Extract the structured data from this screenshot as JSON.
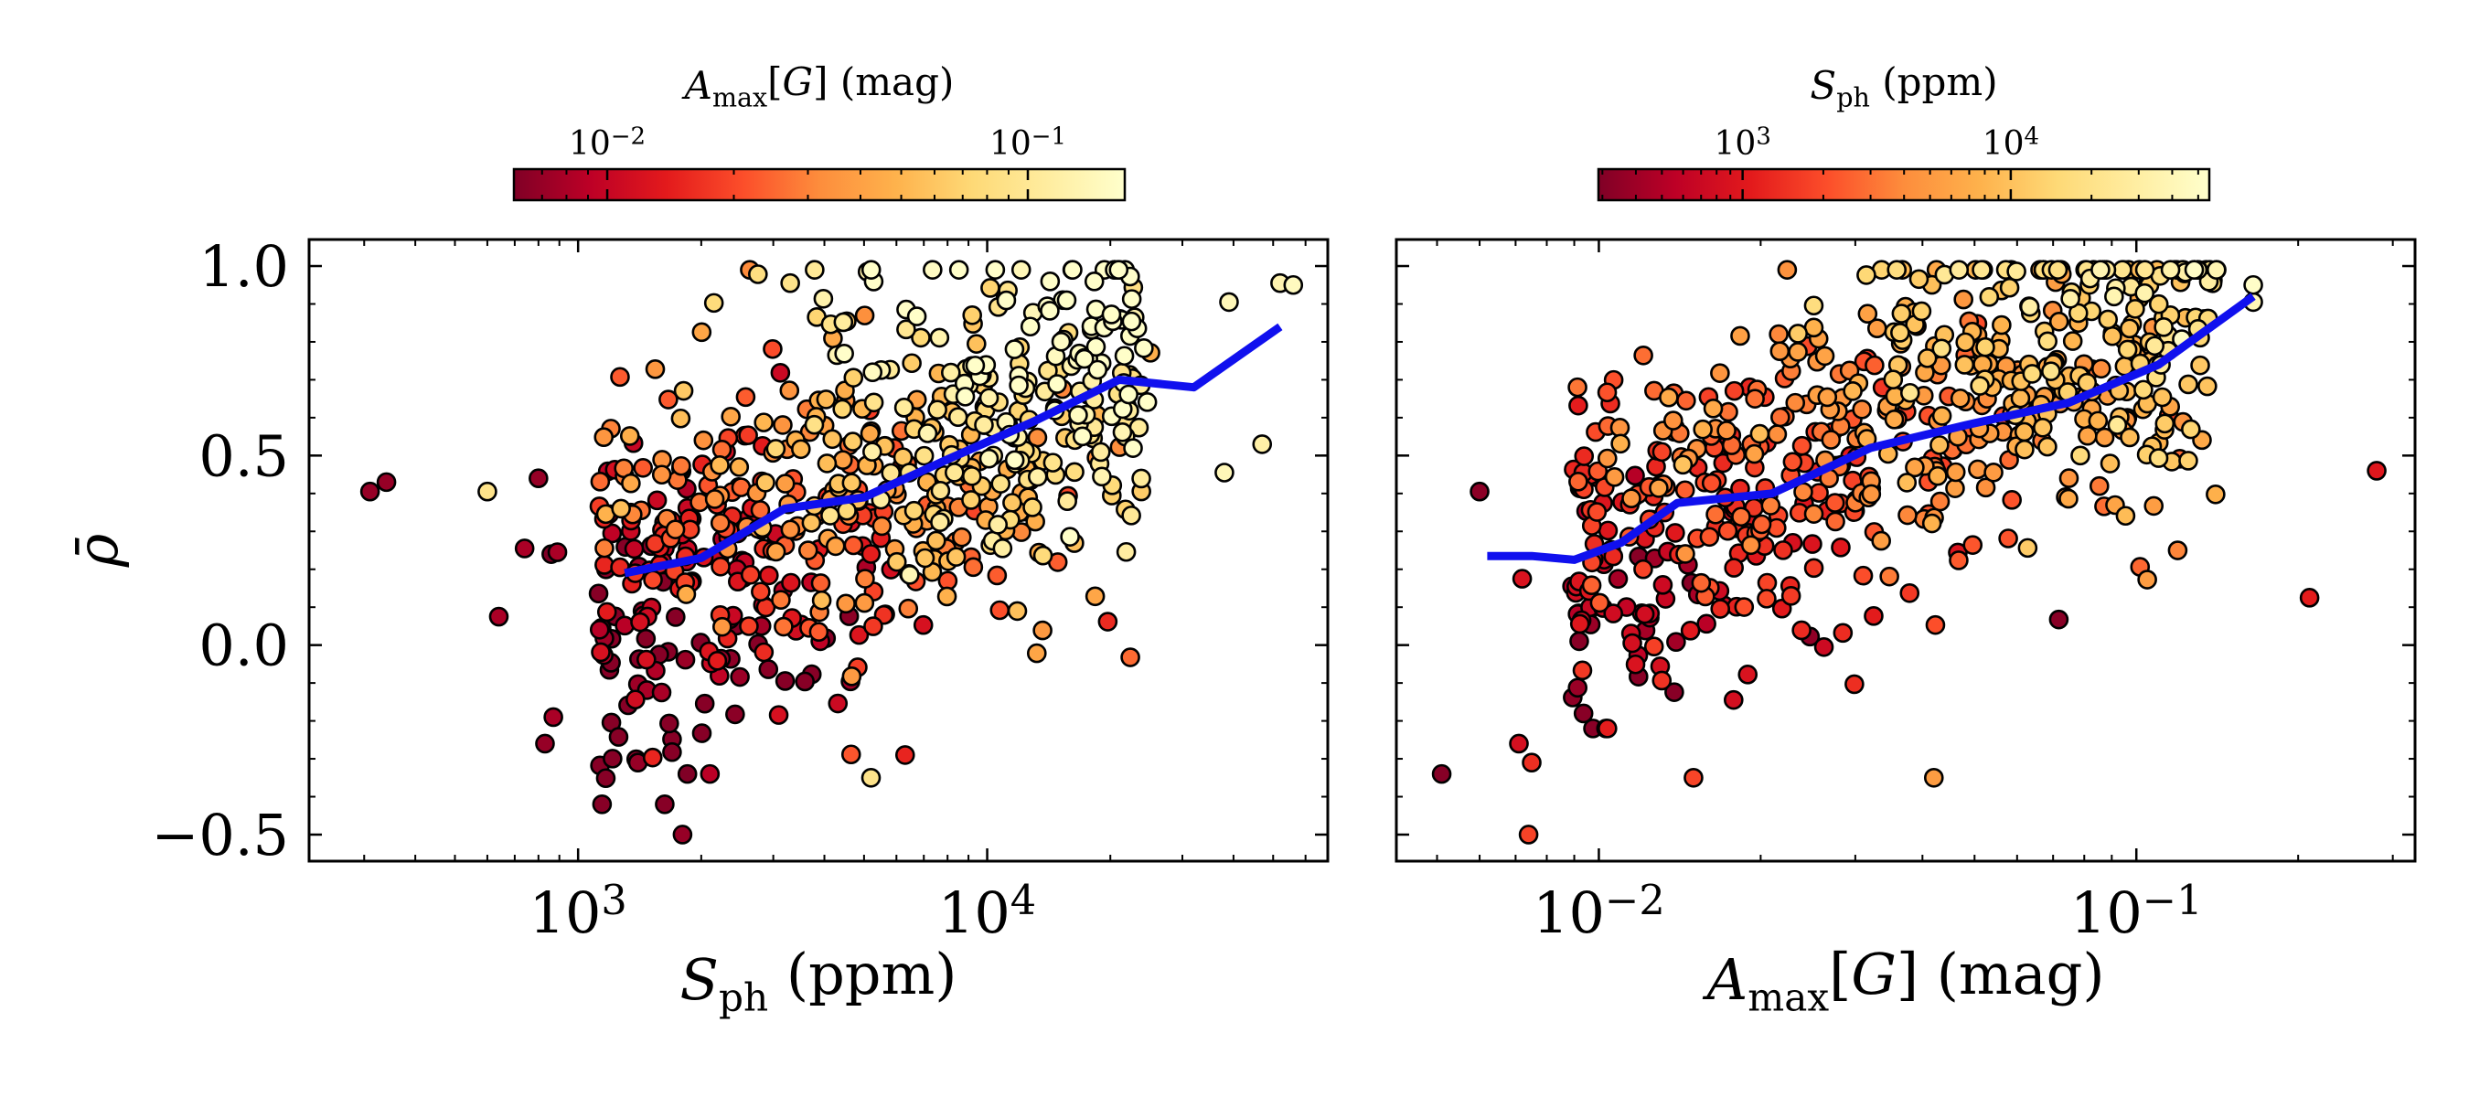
{
  "chart_data": [
    {
      "type": "scatter",
      "xlabel": "S_ph (ppm)",
      "ylabel": "ρ̄",
      "xscale": "log",
      "xlim": [
        220,
        68000
      ],
      "ylim": [
        -0.57,
        1.07
      ],
      "yticks": [
        {
          "value": -0.5,
          "label": "−0.5"
        },
        {
          "value": 0.0,
          "label": "0.0"
        },
        {
          "value": 0.5,
          "label": "0.5"
        },
        {
          "value": 1.0,
          "label": "1.0"
        }
      ],
      "xticks": [
        {
          "value": 1000,
          "base": "10",
          "exp": "3"
        },
        {
          "value": 10000,
          "base": "10",
          "exp": "4"
        }
      ],
      "colorbar": {
        "label": "A_max[G] (mag)",
        "colormap": "YlOrRd_r",
        "scale": "log",
        "range": [
          0.006,
          0.17
        ],
        "ticks": [
          {
            "value": 0.01,
            "base": "10",
            "exp": "−2"
          },
          {
            "value": 0.1,
            "base": "10",
            "exp": "−1"
          }
        ]
      },
      "trend_line": {
        "color": "#1010ee",
        "x": [
          1300,
          2000,
          3200,
          5000,
          8000,
          13000,
          21000,
          32000,
          52000
        ],
        "y": [
          0.19,
          0.23,
          0.36,
          0.39,
          0.49,
          0.59,
          0.7,
          0.68,
          0.84
        ]
      },
      "outliers": [
        {
          "x": 310,
          "y": 0.405,
          "c": 0.007
        },
        {
          "x": 340,
          "y": 0.43,
          "c": 0.007
        },
        {
          "x": 600,
          "y": 0.405,
          "c": 0.09
        },
        {
          "x": 640,
          "y": 0.075,
          "c": 0.008
        },
        {
          "x": 740,
          "y": 0.255,
          "c": 0.008
        },
        {
          "x": 800,
          "y": 0.44,
          "c": 0.007
        },
        {
          "x": 860,
          "y": 0.24,
          "c": 0.006
        },
        {
          "x": 890,
          "y": 0.245,
          "c": 0.008
        },
        {
          "x": 830,
          "y": -0.26,
          "c": 0.007
        },
        {
          "x": 870,
          "y": -0.19,
          "c": 0.008
        },
        {
          "x": 1400,
          "y": -0.31,
          "c": 0.007
        },
        {
          "x": 1800,
          "y": -0.5,
          "c": 0.007
        },
        {
          "x": 1850,
          "y": -0.34,
          "c": 0.006
        },
        {
          "x": 1600,
          "y": -0.125,
          "c": 0.008
        },
        {
          "x": 2100,
          "y": -0.34,
          "c": 0.009
        },
        {
          "x": 5200,
          "y": -0.35,
          "c": 0.09
        },
        {
          "x": 6300,
          "y": -0.29,
          "c": 0.015
        },
        {
          "x": 5100,
          "y": 0.985,
          "c": 0.12
        },
        {
          "x": 3300,
          "y": 0.955,
          "c": 0.09
        },
        {
          "x": 47000,
          "y": 0.53,
          "c": 0.12
        },
        {
          "x": 52000,
          "y": 0.955,
          "c": 0.13
        },
        {
          "x": 56000,
          "y": 0.95,
          "c": 0.15
        },
        {
          "x": 38000,
          "y": 0.455,
          "c": 0.14
        },
        {
          "x": 39000,
          "y": 0.905,
          "c": 0.14
        }
      ],
      "bulk_points": 620
    },
    {
      "type": "scatter",
      "xlabel": "A_max[G] (mag)",
      "xscale": "log",
      "xlim": [
        0.0042,
        0.33
      ],
      "ylim": [
        -0.57,
        1.07
      ],
      "xticks": [
        {
          "value": 0.01,
          "base": "10",
          "exp": "−2"
        },
        {
          "value": 0.1,
          "base": "10",
          "exp": "−1"
        }
      ],
      "colorbar": {
        "label": "S_ph (ppm)",
        "colormap": "YlOrRd_r",
        "scale": "log",
        "range": [
          290,
          55000
        ],
        "ticks": [
          {
            "value": 1000,
            "base": "10",
            "exp": "3"
          },
          {
            "value": 10000,
            "base": "10",
            "exp": "4"
          }
        ]
      },
      "trend_line": {
        "color": "#1010ee",
        "x": [
          0.0062,
          0.0075,
          0.009,
          0.011,
          0.014,
          0.021,
          0.032,
          0.048,
          0.075,
          0.11,
          0.165
        ],
        "y": [
          0.235,
          0.235,
          0.225,
          0.27,
          0.375,
          0.4,
          0.52,
          0.58,
          0.64,
          0.74,
          0.92
        ]
      },
      "outliers": [
        {
          "x": 0.0051,
          "y": -0.34,
          "c": 310
        },
        {
          "x": 0.006,
          "y": 0.405,
          "c": 330
        },
        {
          "x": 0.0071,
          "y": -0.26,
          "c": 830
        },
        {
          "x": 0.0075,
          "y": -0.31,
          "c": 1400
        },
        {
          "x": 0.0074,
          "y": -0.5,
          "c": 1800
        },
        {
          "x": 0.0072,
          "y": 0.175,
          "c": 900
        },
        {
          "x": 0.21,
          "y": 0.125,
          "c": 1100
        },
        {
          "x": 0.28,
          "y": 0.46,
          "c": 1000
        },
        {
          "x": 0.165,
          "y": 0.95,
          "c": 52000
        },
        {
          "x": 0.165,
          "y": 0.905,
          "c": 40000
        },
        {
          "x": 0.042,
          "y": -0.35,
          "c": 5200
        },
        {
          "x": 0.015,
          "y": -0.35,
          "c": 1850
        }
      ],
      "bulk_points": 620
    }
  ]
}
